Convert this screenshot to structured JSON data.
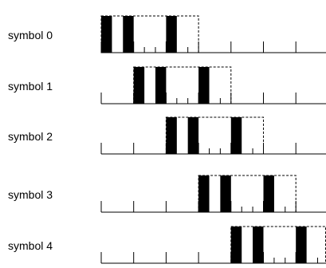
{
  "rows": [
    {
      "label": "symbol 0",
      "offset": 0
    },
    {
      "label": "symbol 1",
      "offset": 1
    },
    {
      "label": "symbol 2",
      "offset": 2
    },
    {
      "label": "symbol 3",
      "offset": 3
    },
    {
      "label": "symbol 4",
      "offset": 4
    }
  ],
  "symbol_pattern": {
    "span_units": 3,
    "bar_starts_units": [
      0,
      0.67,
      2
    ],
    "bar_width_units": 0.33,
    "minor_tick_units": [
      1.33,
      1.67,
      2.67
    ]
  },
  "colors": {
    "bar": "#000000",
    "outline": "#000000",
    "axis": "#000000"
  }
}
